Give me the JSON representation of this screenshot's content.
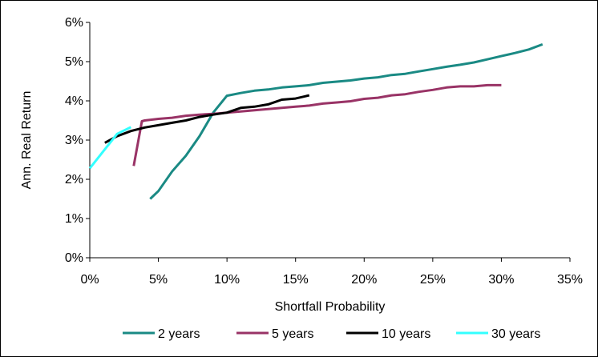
{
  "chart_data": {
    "type": "line",
    "title": "",
    "xlabel": "Shortfall Probability",
    "ylabel": "Ann. Real Return",
    "xlim": [
      0,
      0.35
    ],
    "ylim": [
      0,
      0.06
    ],
    "x_ticks": [
      "0%",
      "5%",
      "10%",
      "15%",
      "20%",
      "25%",
      "30%",
      "35%"
    ],
    "y_ticks": [
      "0%",
      "1%",
      "2%",
      "3%",
      "4%",
      "5%",
      "6%"
    ],
    "grid": false,
    "legend_position": "bottom",
    "series": [
      {
        "name": "2 years",
        "color": "#1a8a84",
        "points": [
          [
            0.044,
            0.015
          ],
          [
            0.05,
            0.017
          ],
          [
            0.06,
            0.022
          ],
          [
            0.07,
            0.026
          ],
          [
            0.08,
            0.031
          ],
          [
            0.09,
            0.037
          ],
          [
            0.1,
            0.0413
          ],
          [
            0.11,
            0.042
          ],
          [
            0.12,
            0.0426
          ],
          [
            0.13,
            0.0429
          ],
          [
            0.14,
            0.0434
          ],
          [
            0.15,
            0.0437
          ],
          [
            0.16,
            0.044
          ],
          [
            0.17,
            0.0446
          ],
          [
            0.18,
            0.0449
          ],
          [
            0.19,
            0.0452
          ],
          [
            0.2,
            0.0457
          ],
          [
            0.21,
            0.046
          ],
          [
            0.22,
            0.0466
          ],
          [
            0.23,
            0.0469
          ],
          [
            0.24,
            0.0475
          ],
          [
            0.25,
            0.0481
          ],
          [
            0.26,
            0.0487
          ],
          [
            0.27,
            0.0492
          ],
          [
            0.28,
            0.0498
          ],
          [
            0.29,
            0.0506
          ],
          [
            0.3,
            0.0514
          ],
          [
            0.31,
            0.0522
          ],
          [
            0.32,
            0.0531
          ],
          [
            0.33,
            0.0544
          ]
        ]
      },
      {
        "name": "5 years",
        "color": "#993366",
        "points": [
          [
            0.032,
            0.0234
          ],
          [
            0.038,
            0.0348
          ],
          [
            0.04,
            0.035
          ],
          [
            0.05,
            0.0354
          ],
          [
            0.06,
            0.0357
          ],
          [
            0.07,
            0.0362
          ],
          [
            0.08,
            0.0365
          ],
          [
            0.09,
            0.0367
          ],
          [
            0.1,
            0.037
          ],
          [
            0.11,
            0.0373
          ],
          [
            0.12,
            0.0376
          ],
          [
            0.13,
            0.0379
          ],
          [
            0.14,
            0.0382
          ],
          [
            0.15,
            0.0385
          ],
          [
            0.16,
            0.0388
          ],
          [
            0.17,
            0.0393
          ],
          [
            0.18,
            0.0396
          ],
          [
            0.19,
            0.0399
          ],
          [
            0.2,
            0.0405
          ],
          [
            0.21,
            0.0408
          ],
          [
            0.22,
            0.0414
          ],
          [
            0.23,
            0.0417
          ],
          [
            0.24,
            0.0423
          ],
          [
            0.25,
            0.0428
          ],
          [
            0.26,
            0.0434
          ],
          [
            0.27,
            0.0437
          ],
          [
            0.28,
            0.0437
          ],
          [
            0.29,
            0.044
          ],
          [
            0.3,
            0.044
          ]
        ]
      },
      {
        "name": "10 years",
        "color": "#000000",
        "points": [
          [
            0.011,
            0.0293
          ],
          [
            0.02,
            0.031
          ],
          [
            0.03,
            0.0323
          ],
          [
            0.04,
            0.0332
          ],
          [
            0.05,
            0.0338
          ],
          [
            0.06,
            0.0344
          ],
          [
            0.07,
            0.035
          ],
          [
            0.08,
            0.0359
          ],
          [
            0.09,
            0.0365
          ],
          [
            0.1,
            0.037
          ],
          [
            0.11,
            0.0382
          ],
          [
            0.12,
            0.0385
          ],
          [
            0.13,
            0.0391
          ],
          [
            0.14,
            0.0403
          ],
          [
            0.15,
            0.0406
          ],
          [
            0.16,
            0.0414
          ]
        ]
      },
      {
        "name": "30 years",
        "color": "#33ffff",
        "points": [
          [
            0.0,
            0.0228
          ],
          [
            0.01,
            0.0272
          ],
          [
            0.02,
            0.0316
          ],
          [
            0.03,
            0.0333
          ]
        ]
      }
    ]
  }
}
